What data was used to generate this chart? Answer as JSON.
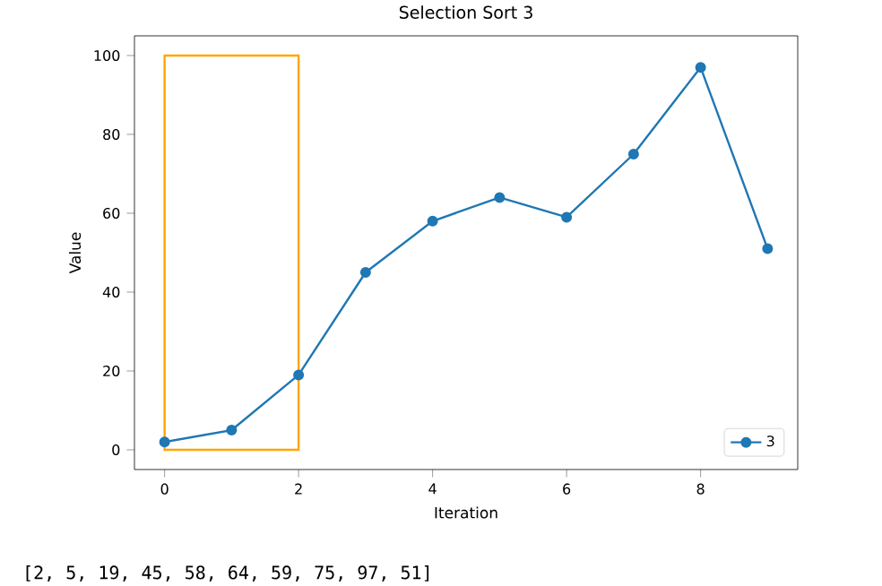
{
  "chart_data": {
    "type": "line",
    "title": "Selection Sort 3",
    "xlabel": "Iteration",
    "ylabel": "Value",
    "x": [
      0,
      1,
      2,
      3,
      4,
      5,
      6,
      7,
      8,
      9
    ],
    "series": [
      {
        "type": "bar",
        "color": "#ffa500",
        "x": [
          1
        ],
        "values": [
          100
        ]
      },
      {
        "name": "3",
        "color": "#1f77b4",
        "values": [
          2,
          5,
          19,
          45,
          58,
          64,
          59,
          75,
          97,
          51
        ]
      }
    ],
    "xlim": [
      -0.45,
      9.45
    ],
    "ylim": [
      -5,
      105
    ],
    "xticks": [
      0,
      2,
      4,
      6,
      8
    ],
    "yticks": [
      0,
      20,
      40,
      60,
      80,
      100
    ],
    "marker": "circle",
    "line_style": "solid",
    "legend": "bottom right",
    "grid": false,
    "annotations": [
      "[2, 5, 19, 45, 58, 64, 59, 75, 97, 51]"
    ]
  }
}
